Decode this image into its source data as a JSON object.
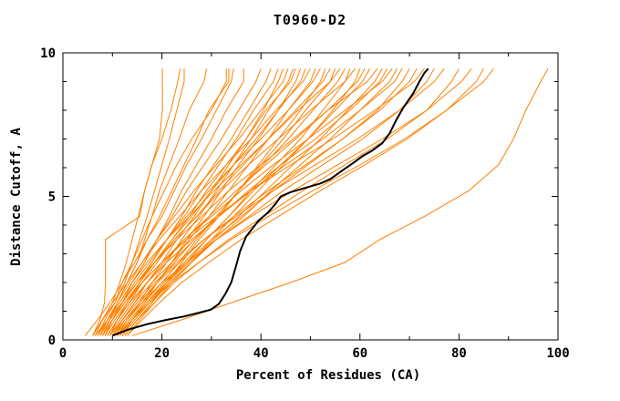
{
  "title": "T0960-D2",
  "chart_data": {
    "type": "line",
    "title": "T0960-D2",
    "xlabel": "Percent of Residues (CA)",
    "ylabel": "Distance Cutoff, A",
    "xlim": [
      0,
      100
    ],
    "ylim": [
      0,
      10
    ],
    "x_major_ticks": [
      0,
      20,
      40,
      60,
      80,
      100
    ],
    "x_minor_step": 10,
    "y_major_ticks": [
      0,
      5,
      10
    ],
    "y_minor_step": 1,
    "grid": false,
    "legend": "none",
    "model_color": "#ff8000",
    "highlight_color": "#000000",
    "cutoff_levels": [
      0.15,
      0.7,
      1.3,
      2,
      2.7,
      3.5,
      4.3,
      5.2,
      6.1,
      7,
      8,
      9,
      9.45
    ],
    "models": [
      {
        "x": [
          6,
          7.5,
          8.4,
          8.6,
          8.6,
          8.6,
          15.5,
          16.5,
          18,
          19.5,
          20.1,
          20.1,
          20.1
        ]
      },
      {
        "x": [
          6.5,
          8,
          10,
          11.5,
          12.8,
          14,
          15.2,
          16.5,
          18,
          20,
          21.8,
          23.2,
          23.7
        ]
      },
      {
        "x": [
          7,
          8.5,
          10.5,
          12.5,
          14,
          15.5,
          17,
          18.5,
          20,
          21.5,
          23,
          24.5,
          24.5
        ]
      },
      {
        "x": [
          7.5,
          9,
          11,
          13,
          15,
          16.5,
          18,
          19.5,
          21.5,
          23.5,
          25.5,
          28.5,
          29
        ]
      },
      {
        "x": [
          4.5,
          7,
          9.5,
          12,
          14,
          16,
          18,
          20.5,
          23,
          26,
          30,
          33,
          33
        ]
      },
      {
        "x": [
          8,
          9.5,
          11,
          13,
          15,
          17,
          19.5,
          22,
          24.5,
          27,
          29.5,
          33.5,
          33.5
        ]
      },
      {
        "x": [
          6,
          8,
          10.5,
          12,
          14.5,
          17,
          20,
          22.5,
          25,
          28,
          31,
          34,
          34.5
        ]
      },
      {
        "x": [
          8.5,
          10,
          12,
          14,
          16.5,
          19,
          21.5,
          24,
          27,
          30,
          33,
          36.5,
          36.5
        ]
      },
      {
        "x": [
          7,
          9,
          11.5,
          14,
          16.5,
          19,
          22,
          25,
          28.5,
          32,
          35.5,
          39,
          40
        ]
      },
      {
        "x": [
          9,
          11,
          13,
          15.5,
          18,
          21,
          24,
          27,
          30.5,
          34,
          37.5,
          41,
          42
        ]
      },
      {
        "x": [
          6.5,
          9,
          12,
          15,
          18,
          21,
          24.5,
          28,
          31.5,
          35,
          38.5,
          42.5,
          43.5
        ]
      },
      {
        "x": [
          10,
          12,
          14.5,
          17,
          20,
          23,
          26.5,
          30,
          33.5,
          37,
          40.5,
          43.5,
          44.5
        ]
      },
      {
        "x": [
          7.5,
          9,
          11,
          13.5,
          16,
          19,
          22.5,
          26.5,
          31,
          35.5,
          40,
          44.5,
          45.5
        ]
      },
      {
        "x": [
          11,
          13,
          15.5,
          18,
          21,
          24,
          27.5,
          31,
          34.5,
          38,
          41.5,
          45.5,
          46.5
        ]
      },
      {
        "x": [
          8,
          10,
          12.5,
          15.5,
          18.5,
          22,
          25.5,
          29,
          33,
          37,
          41,
          46,
          47
        ]
      },
      {
        "x": [
          12,
          14,
          16.5,
          19,
          22,
          25,
          28.5,
          32,
          35.5,
          39.5,
          43.5,
          47,
          48
        ]
      },
      {
        "x": [
          9.5,
          11,
          13,
          15.5,
          18.5,
          22,
          26,
          30,
          34.5,
          39,
          43.5,
          48,
          49
        ]
      },
      {
        "x": [
          6,
          8,
          10,
          13,
          16,
          19.5,
          23.5,
          28,
          33,
          38,
          43,
          48.5,
          50
        ]
      },
      {
        "x": [
          10.5,
          13,
          16,
          19,
          22,
          25.5,
          29.5,
          33.5,
          37.5,
          41.5,
          45.5,
          50,
          51
        ]
      },
      {
        "x": [
          8.5,
          10,
          12,
          14.5,
          17.5,
          21,
          25,
          29.5,
          34.5,
          40,
          45.5,
          50.5,
          52
        ]
      },
      {
        "x": [
          12.5,
          15,
          18,
          21,
          24,
          27.5,
          31.5,
          35.5,
          39.5,
          43.5,
          48,
          52,
          53
        ]
      },
      {
        "x": [
          9,
          11,
          13.5,
          16,
          19,
          22.5,
          27,
          31.5,
          36.5,
          41.5,
          47,
          52.5,
          54
        ]
      },
      {
        "x": [
          11,
          13.5,
          16.5,
          20,
          23.5,
          27,
          31,
          35.5,
          40,
          44.5,
          49,
          54,
          55
        ]
      },
      {
        "x": [
          7,
          9,
          11.5,
          14,
          17,
          21,
          25.5,
          30.5,
          36,
          41.5,
          47.5,
          54,
          56
        ]
      },
      {
        "x": [
          10,
          12.5,
          15.5,
          19,
          22.5,
          26.5,
          31,
          35.5,
          40.5,
          45.5,
          50.5,
          55.5,
          57
        ]
      },
      {
        "x": [
          12,
          14.5,
          17.5,
          21,
          25,
          29,
          33.5,
          38,
          43,
          48,
          52.5,
          57,
          58
        ]
      },
      {
        "x": [
          8,
          10,
          12,
          15,
          18.5,
          22.5,
          27,
          32,
          37.5,
          43.5,
          50,
          57,
          59
        ]
      },
      {
        "x": [
          13,
          15.5,
          18.5,
          22,
          26,
          30,
          34.5,
          39.5,
          44.5,
          49.5,
          54.5,
          59,
          60
        ]
      },
      {
        "x": [
          9.5,
          11.5,
          14,
          17,
          20.5,
          24.5,
          29.5,
          35,
          41,
          47,
          53.5,
          59.5,
          61
        ]
      },
      {
        "x": [
          11.5,
          14,
          17,
          20.5,
          24.5,
          29,
          33.5,
          38.5,
          44,
          49.5,
          55,
          60.5,
          62
        ]
      },
      {
        "x": [
          7.5,
          9.5,
          12,
          15,
          18.5,
          23,
          28,
          33.5,
          40,
          46.5,
          53.5,
          61.5,
          63.5
        ]
      },
      {
        "x": [
          12.5,
          15,
          18,
          21.5,
          26,
          30.5,
          35.5,
          41,
          46.5,
          52,
          57.5,
          63,
          64.5
        ]
      },
      {
        "x": [
          10,
          12,
          14.5,
          18,
          22,
          26.5,
          31.5,
          37.5,
          44,
          51,
          58,
          64,
          65.5
        ]
      },
      {
        "x": [
          8.5,
          10.5,
          13,
          16,
          20,
          24.5,
          30,
          36,
          42.5,
          49.5,
          57,
          64.5,
          66.5
        ]
      },
      {
        "x": [
          11,
          14,
          17.5,
          21.5,
          26,
          31,
          36.5,
          42,
          48,
          54,
          60,
          66,
          67.5
        ]
      },
      {
        "x": [
          9,
          11,
          13.5,
          17,
          21,
          26,
          31.5,
          38,
          45,
          52.5,
          60,
          67,
          68.5
        ]
      },
      {
        "x": [
          12,
          14,
          17,
          20.5,
          25,
          30,
          36,
          42.5,
          49.5,
          56.5,
          63.5,
          68.5,
          70
        ]
      },
      {
        "x": [
          10.5,
          12.5,
          15.5,
          19,
          23.5,
          28.5,
          34.5,
          41.5,
          49,
          56.5,
          64,
          70,
          71.5
        ]
      },
      {
        "x": [
          8,
          10,
          12.5,
          16,
          20,
          25,
          31,
          38,
          46,
          54.5,
          63,
          71,
          73
        ]
      },
      {
        "x": [
          11.5,
          14,
          17,
          21,
          25.5,
          31,
          37.5,
          44.5,
          52.5,
          60.5,
          68,
          73.5,
          75
        ]
      },
      {
        "x": [
          9.5,
          12,
          15,
          18.5,
          23,
          28.5,
          35,
          42.5,
          51,
          59.5,
          68,
          75,
          77
        ]
      },
      {
        "x": [
          12.5,
          15,
          18.5,
          22.5,
          27.5,
          33.5,
          40.5,
          48.5,
          57,
          65.5,
          73.5,
          78.5,
          80
        ]
      },
      {
        "x": [
          10,
          12.5,
          16,
          20,
          25,
          31,
          38,
          46.5,
          55.5,
          64.5,
          73.5,
          80.5,
          82.5
        ]
      },
      {
        "x": [
          13,
          16,
          19.5,
          24,
          29.5,
          36,
          43.5,
          52,
          61,
          69.5,
          77.5,
          83.5,
          85
        ]
      },
      {
        "x": [
          11,
          14,
          17.5,
          22,
          27.5,
          34,
          41.5,
          50.5,
          60,
          69,
          77.5,
          85,
          87
        ]
      },
      {
        "x": [
          14,
          24,
          34,
          46,
          57,
          64,
          73,
          82,
          88,
          91,
          93.5,
          96.5,
          98
        ]
      }
    ],
    "highlighted_model": {
      "points": [
        [
          10,
          0.15
        ],
        [
          13,
          0.35
        ],
        [
          17,
          0.55
        ],
        [
          21,
          0.7
        ],
        [
          24.5,
          0.82
        ],
        [
          27.5,
          0.95
        ],
        [
          29.8,
          1.05
        ],
        [
          31.5,
          1.25
        ],
        [
          32.8,
          1.6
        ],
        [
          34,
          2.0
        ],
        [
          35,
          2.6
        ],
        [
          35.8,
          3.1
        ],
        [
          37,
          3.6
        ],
        [
          39.5,
          4.15
        ],
        [
          41.5,
          4.45
        ],
        [
          43,
          4.75
        ],
        [
          44,
          5.0
        ],
        [
          46,
          5.15
        ],
        [
          49,
          5.3
        ],
        [
          52,
          5.45
        ],
        [
          54,
          5.6
        ],
        [
          56,
          5.85
        ],
        [
          58.5,
          6.15
        ],
        [
          60.5,
          6.4
        ],
        [
          62.5,
          6.6
        ],
        [
          64.5,
          6.85
        ],
        [
          66,
          7.2
        ],
        [
          67.3,
          7.65
        ],
        [
          68.8,
          8.1
        ],
        [
          70.8,
          8.6
        ],
        [
          72,
          9.0
        ],
        [
          73,
          9.3
        ],
        [
          73.8,
          9.45
        ]
      ]
    }
  }
}
